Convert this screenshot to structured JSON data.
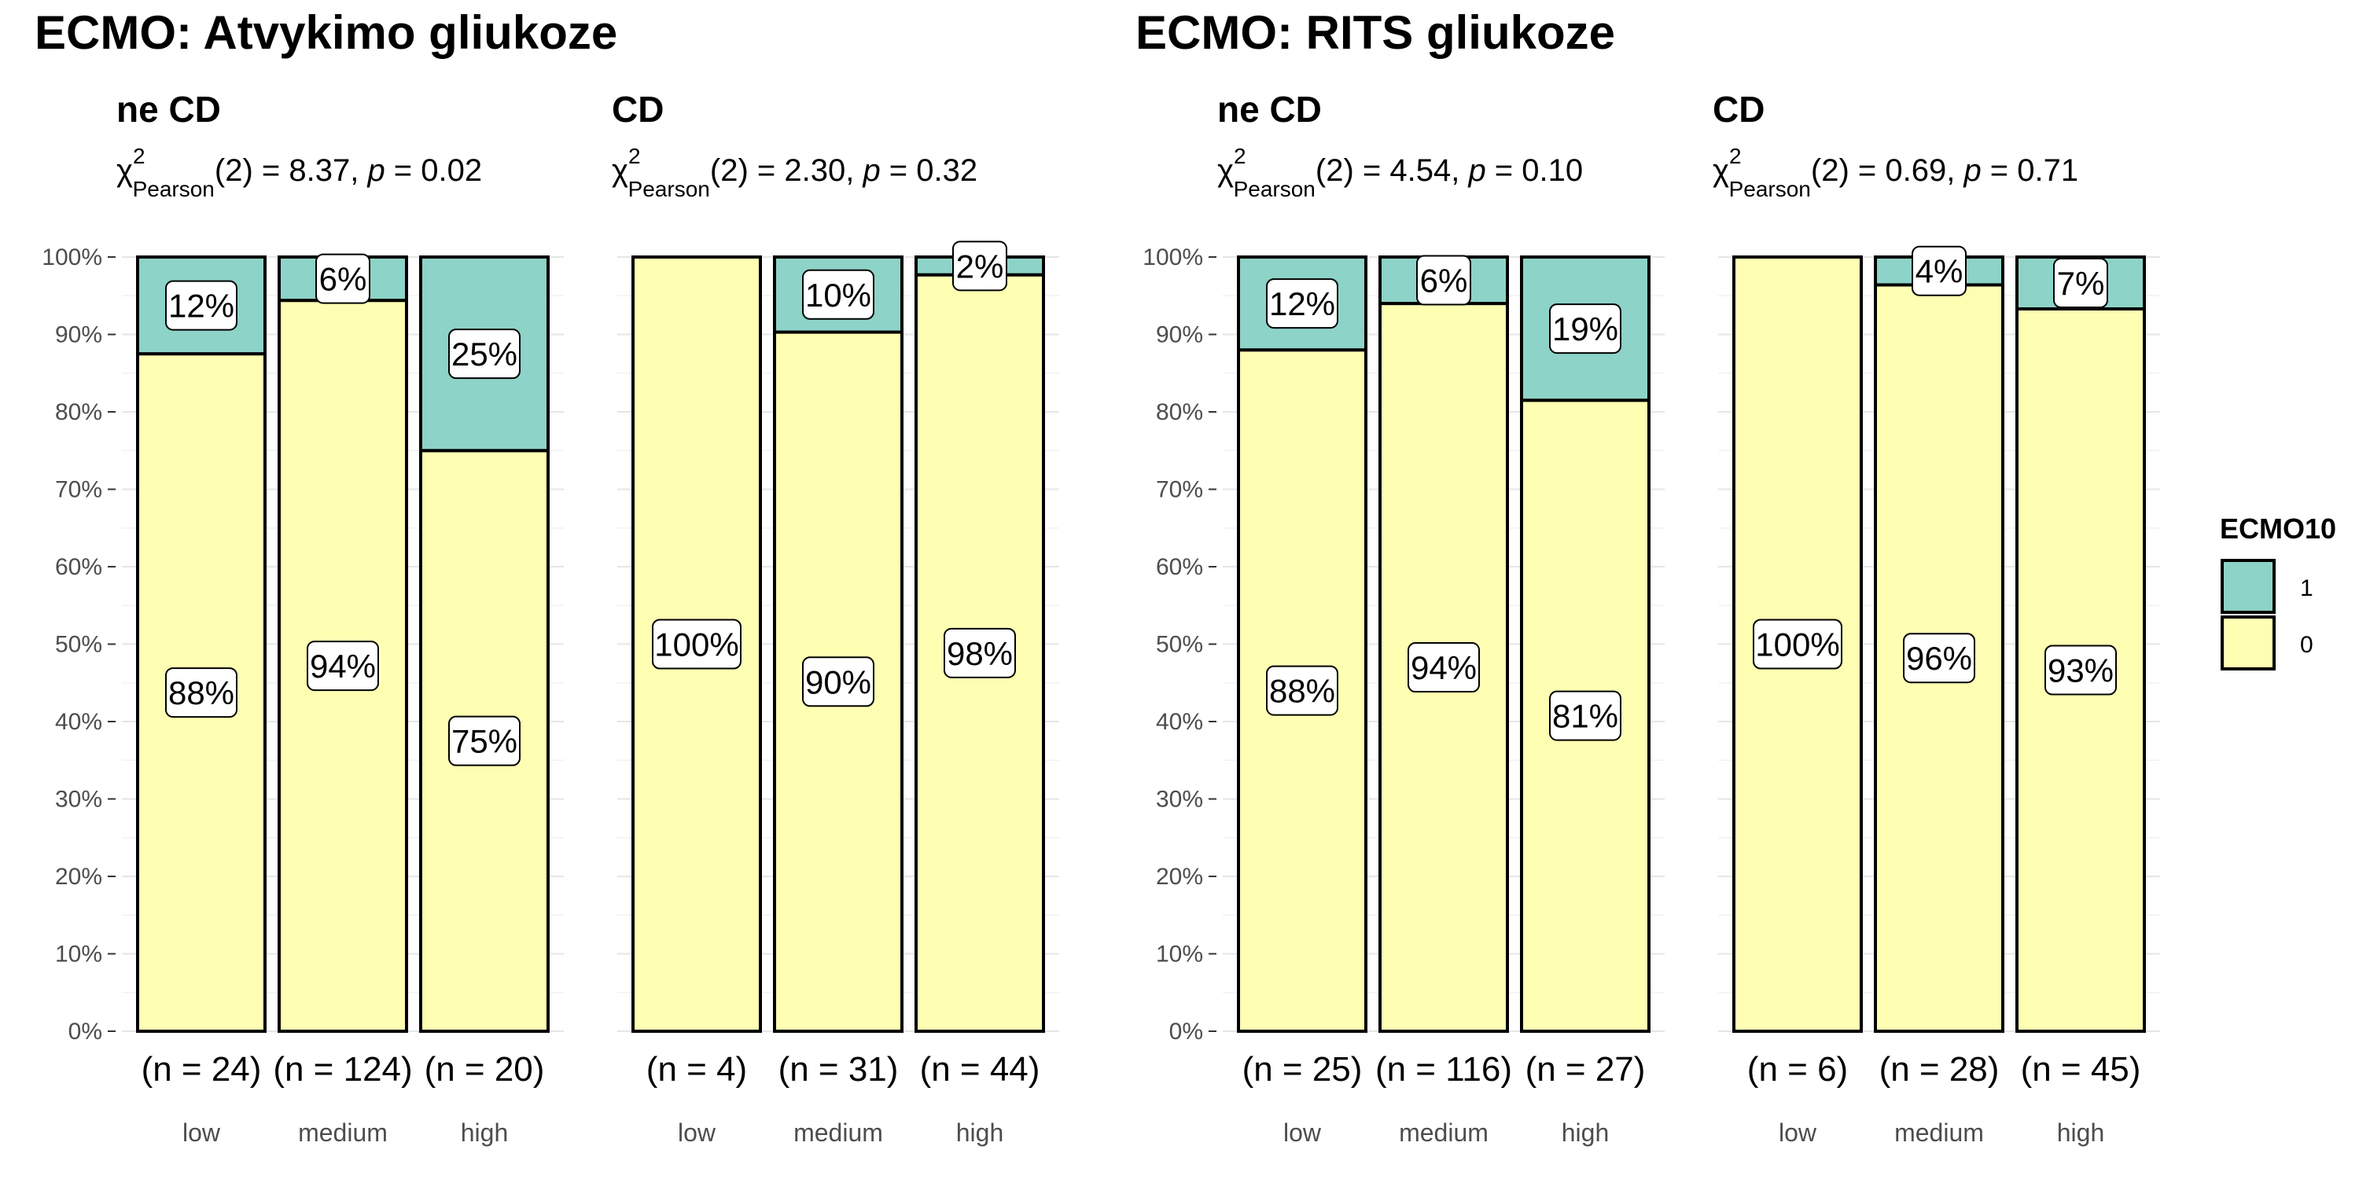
{
  "titles": [
    "ECMO: Atvykimo gliukoze",
    "ECMO: RITS gliukoze"
  ],
  "legend": {
    "title": "ECMO10",
    "items": [
      {
        "label": "1",
        "color": "#8DD3C7"
      },
      {
        "label": "0",
        "color": "#FFFFB3"
      }
    ]
  },
  "chart_data": [
    {
      "type": "bar",
      "title": "ne CD",
      "stat": {
        "label": "Pearson",
        "df": "(2)",
        "value": " = 8.37, ",
        "p": " = 0.02"
      },
      "categories": [
        "low",
        "medium",
        "high"
      ],
      "n_labels": [
        "(n = 24)",
        "(n = 124)",
        "(n = 20)"
      ],
      "series": [
        {
          "name": "0",
          "values": [
            87.5,
            94.4,
            75.0
          ],
          "labels": [
            "88%",
            "94%",
            "75%"
          ]
        },
        {
          "name": "1",
          "values": [
            12.5,
            5.6,
            25.0
          ],
          "labels": [
            "12%",
            "6%",
            "25%"
          ]
        }
      ],
      "ylim": [
        0,
        100
      ],
      "yticks": [
        "0%",
        "10%",
        "20%",
        "30%",
        "40%",
        "50%",
        "60%",
        "70%",
        "80%",
        "90%",
        "100%"
      ],
      "show_yticks": true
    },
    {
      "type": "bar",
      "title": "CD",
      "stat": {
        "label": "Pearson",
        "df": "(2)",
        "value": " = 2.30, ",
        "p": " = 0.32"
      },
      "categories": [
        "low",
        "medium",
        "high"
      ],
      "n_labels": [
        "(n = 4)",
        "(n = 31)",
        "(n = 44)"
      ],
      "series": [
        {
          "name": "0",
          "values": [
            100,
            90.3,
            97.7
          ],
          "labels": [
            "100%",
            "90%",
            "98%"
          ]
        },
        {
          "name": "1",
          "values": [
            0,
            9.7,
            2.3
          ],
          "labels": [
            "",
            "10%",
            "2%"
          ]
        }
      ],
      "ylim": [
        0,
        100
      ],
      "show_yticks": false
    },
    {
      "type": "bar",
      "title": "ne CD",
      "stat": {
        "label": "Pearson",
        "df": "(2)",
        "value": " = 4.54, ",
        "p": " = 0.10"
      },
      "categories": [
        "low",
        "medium",
        "high"
      ],
      "n_labels": [
        "(n = 25)",
        "(n = 116)",
        "(n = 27)"
      ],
      "series": [
        {
          "name": "0",
          "values": [
            88.0,
            94.0,
            81.5
          ],
          "labels": [
            "88%",
            "94%",
            "81%"
          ]
        },
        {
          "name": "1",
          "values": [
            12.0,
            6.0,
            18.5
          ],
          "labels": [
            "12%",
            "6%",
            "19%"
          ]
        }
      ],
      "ylim": [
        0,
        100
      ],
      "yticks": [
        "0%",
        "10%",
        "20%",
        "30%",
        "40%",
        "50%",
        "60%",
        "70%",
        "80%",
        "90%",
        "100%"
      ],
      "show_yticks": true
    },
    {
      "type": "bar",
      "title": "CD",
      "stat": {
        "label": "Pearson",
        "df": "(2)",
        "value": " = 0.69, ",
        "p": " = 0.71"
      },
      "categories": [
        "low",
        "medium",
        "high"
      ],
      "n_labels": [
        "(n = 6)",
        "(n = 28)",
        "(n = 45)"
      ],
      "series": [
        {
          "name": "0",
          "values": [
            100,
            96.4,
            93.3
          ],
          "labels": [
            "100%",
            "96%",
            "93%"
          ]
        },
        {
          "name": "1",
          "values": [
            0,
            3.6,
            6.7
          ],
          "labels": [
            "",
            "4%",
            "7%"
          ]
        }
      ],
      "ylim": [
        0,
        100
      ],
      "show_yticks": false
    }
  ]
}
